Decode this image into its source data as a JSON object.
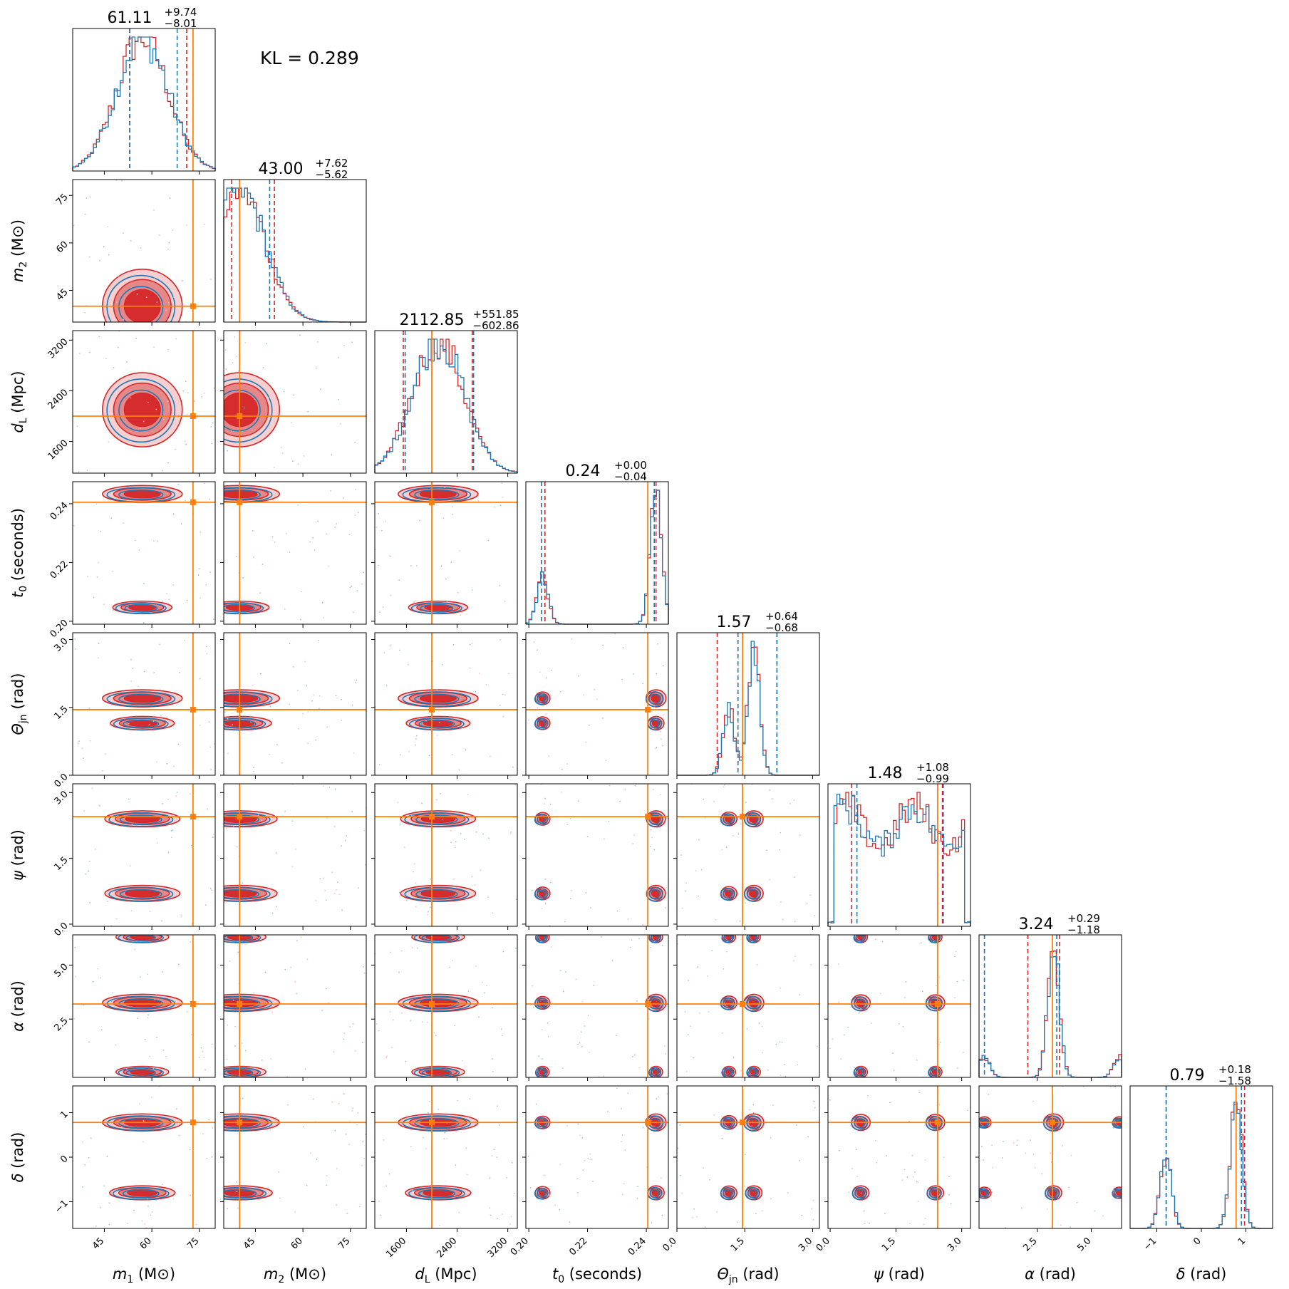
{
  "figure": {
    "kl_text": "KL = 0.289",
    "colors": {
      "series_a": "#d62728",
      "series_b": "#1f77b4",
      "truth": "#ff7f0e",
      "fill_inner": "#d62728",
      "fill_mid": "#e37a7b",
      "fill_outer": "#f2bcbc"
    }
  },
  "chart_data": {
    "type": "corner",
    "series": [
      {
        "name": "",
        "color": "#d62728"
      },
      {
        "name": "",
        "color": "#1f77b4"
      }
    ],
    "parameters": [
      {
        "key": "m1",
        "label_main": "m",
        "label_sub": "1",
        "label_unit": " (M⊙)",
        "ticks": [
          "45",
          "60",
          "75"
        ],
        "tick_values": [
          45,
          60,
          75
        ],
        "range": [
          35,
          80
        ],
        "truth": 73,
        "title": {
          "value": "61.11",
          "plus": "+9.74",
          "minus": "−8.01"
        },
        "quantiles_a": [
          53,
          71
        ],
        "quantiles_b": [
          53,
          68
        ],
        "peaks": [
          [
            57,
            1
          ]
        ]
      },
      {
        "key": "m2",
        "label_main": "m",
        "label_sub": "2",
        "label_unit": " (M⊙)",
        "ticks": [
          "45",
          "60",
          "75"
        ],
        "tick_values": [
          45,
          60,
          75
        ],
        "range": [
          35,
          80
        ],
        "truth": 40,
        "title": {
          "value": "43.00",
          "plus": "+7.62",
          "minus": "−5.62"
        },
        "quantiles_a": [
          37.5,
          51
        ],
        "quantiles_b": [
          40,
          49.5
        ],
        "peaks": [
          [
            40,
            1
          ]
        ]
      },
      {
        "key": "dL",
        "label_main": "d",
        "label_sub": "L",
        "label_unit": " (Mpc)",
        "ticks": [
          "1600",
          "2400",
          "3200"
        ],
        "tick_values": [
          1600,
          2400,
          3200
        ],
        "range": [
          1100,
          3350
        ],
        "truth": 2000,
        "title": {
          "value": "2112.85",
          "plus": "+551.85",
          "minus": "−602.86"
        },
        "quantiles_a": [
          1550,
          2640
        ],
        "quantiles_b": [
          1580,
          2660
        ],
        "peaks": [
          [
            2100,
            1
          ]
        ]
      },
      {
        "key": "t0",
        "label_main": "t",
        "label_sub": "0",
        "label_unit": " (seconds)",
        "ticks": [
          "0.20",
          "0.22",
          "0.24"
        ],
        "tick_values": [
          0.2,
          0.22,
          0.24
        ],
        "range": [
          0.199,
          0.2475
        ],
        "truth": 0.2405,
        "title": {
          "value": "0.24",
          "plus": "+0.00",
          "minus": "−0.04"
        },
        "quantiles_a": [
          0.2055,
          0.2433
        ],
        "quantiles_b": [
          0.2043,
          0.2427
        ],
        "peaks": [
          [
            0.2047,
            0.35
          ],
          [
            0.2433,
            1
          ]
        ]
      },
      {
        "key": "theta_jn",
        "label_main": "Θ",
        "label_sub": "jn",
        "label_unit": " (rad)",
        "ticks": [
          "0.0",
          "1.5",
          "3.0"
        ],
        "tick_values": [
          0,
          1.5,
          3
        ],
        "range": [
          0,
          3.15
        ],
        "truth": 1.45,
        "title": {
          "value": "1.57",
          "plus": "+0.64",
          "minus": "−0.68"
        },
        "quantiles_a": [
          0.89,
          2.21
        ],
        "quantiles_b": [
          1.35,
          2.21
        ],
        "peaks": [
          [
            1.15,
            0.5
          ],
          [
            1.7,
            1
          ]
        ]
      },
      {
        "key": "psi",
        "label_main": "ψ",
        "label_sub": "",
        "label_unit": " (rad)",
        "ticks": [
          "0.0",
          "1.5",
          "3.0"
        ],
        "tick_values": [
          0,
          1.5,
          3
        ],
        "range": [
          -0.05,
          3.2
        ],
        "truth": 2.45,
        "title": {
          "value": "1.48",
          "plus": "+1.08",
          "minus": "−0.99"
        },
        "quantiles_a": [
          0.49,
          2.56
        ],
        "quantiles_b": [
          0.61,
          2.58
        ],
        "peaks": [
          [
            0.7,
            0.85
          ],
          [
            2.4,
            0.85
          ]
        ]
      },
      {
        "key": "alpha",
        "label_main": "α",
        "label_sub": "",
        "label_unit": " (rad)",
        "ticks": [
          "2.5",
          "5.0"
        ],
        "tick_values": [
          2.5,
          5
        ],
        "range": [
          -0.2,
          6.4
        ],
        "truth": 3.2,
        "title": {
          "value": "3.24",
          "plus": "+0.29",
          "minus": "−1.18"
        },
        "quantiles_a": [
          2.06,
          3.53
        ],
        "quantiles_b": [
          0.05,
          3.4
        ],
        "peaks": [
          [
            3.25,
            1
          ],
          [
            0.05,
            0.15
          ],
          [
            6.3,
            0.15
          ]
        ]
      },
      {
        "key": "delta",
        "label_main": "δ",
        "label_sub": "",
        "label_unit": " (rad)",
        "ticks": [
          "−1",
          "0",
          "1"
        ],
        "tick_values": [
          -1,
          0,
          1
        ],
        "range": [
          -1.6,
          1.6
        ],
        "truth": 0.78,
        "title": {
          "value": "0.79",
          "plus": "+0.18",
          "minus": "−1.58"
        },
        "quantiles_a": [
          -0.79,
          0.97
        ],
        "quantiles_b": [
          -0.79,
          0.9
        ],
        "peaks": [
          [
            -0.8,
            0.55
          ],
          [
            0.78,
            1
          ]
        ]
      }
    ]
  }
}
